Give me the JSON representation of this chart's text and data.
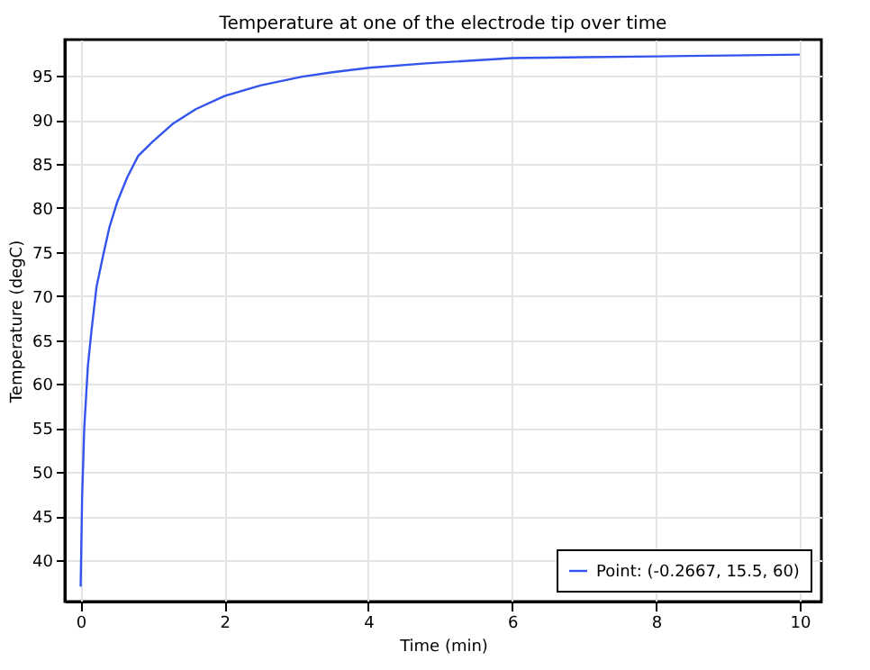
{
  "chart_data": {
    "type": "line",
    "title": "Temperature at one of the electrode tip over time",
    "xlabel": "Time (min)",
    "ylabel": "Temperature (degC)",
    "x": [
      0,
      0.02,
      0.05,
      0.1,
      0.15,
      0.22,
      0.31,
      0.4,
      0.51,
      0.65,
      0.8,
      1.0,
      1.29,
      1.6,
      2.0,
      2.5,
      3.08,
      3.5,
      4.01,
      4.8,
      6.0,
      7.0,
      8.0,
      9.0,
      10.0
    ],
    "series": [
      {
        "name": "Point: (-0.2667, 15.5, 60)",
        "color": "#3355ee",
        "values": [
          37,
          47,
          55,
          62,
          66,
          71,
          74.5,
          77.8,
          80.7,
          83.5,
          85.9,
          87.5,
          89.6,
          91.2,
          92.7,
          93.9,
          94.9,
          95.4,
          95.9,
          96.4,
          97.0,
          97.1,
          97.2,
          97.3,
          97.4
        ]
      }
    ],
    "xlim": [
      -0.22,
      10.3
    ],
    "ylim": [
      35.3,
      99.1
    ],
    "xticks": [
      0,
      2,
      4,
      6,
      8,
      10
    ],
    "yticks": [
      40,
      45,
      50,
      55,
      60,
      65,
      70,
      75,
      80,
      85,
      90,
      95
    ],
    "grid": true,
    "legend": "bottom right",
    "line_style": "solid",
    "marker": "none"
  }
}
